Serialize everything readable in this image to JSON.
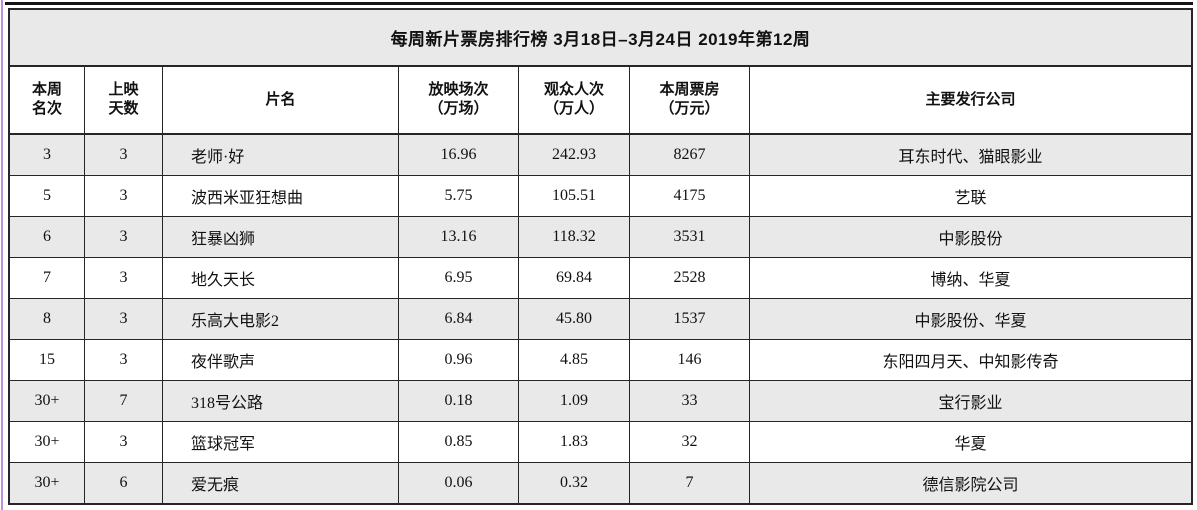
{
  "page": {
    "title": "每周新片票房排行榜  3月18日–3月24日  2019年第12周"
  },
  "chart_data": {
    "type": "table",
    "title": "每周新片票房排行榜 3月18日–3月24日 2019年第12周",
    "week": "2019年第12周",
    "date_range": "3月18日–3月24日",
    "columns": [
      {
        "key": "rank",
        "lines": [
          "本周",
          "名次"
        ]
      },
      {
        "key": "days",
        "lines": [
          "上映",
          "天数"
        ]
      },
      {
        "key": "film-title",
        "lines": [
          "片名"
        ]
      },
      {
        "key": "screenings",
        "lines": [
          "放映场次",
          "（万场）"
        ]
      },
      {
        "key": "admissions",
        "lines": [
          "观众人次",
          "（万人）"
        ]
      },
      {
        "key": "box-office",
        "lines": [
          "本周票房",
          "（万元）"
        ]
      },
      {
        "key": "distributor",
        "lines": [
          "主要发行公司"
        ]
      }
    ],
    "rows": [
      [
        "3",
        "3",
        "老师·好",
        "16.96",
        "242.93",
        "8267",
        "耳东时代、猫眼影业"
      ],
      [
        "5",
        "3",
        "波西米亚狂想曲",
        "5.75",
        "105.51",
        "4175",
        "艺联"
      ],
      [
        "6",
        "3",
        "狂暴凶狮",
        "13.16",
        "118.32",
        "3531",
        "中影股份"
      ],
      [
        "7",
        "3",
        "地久天长",
        "6.95",
        "69.84",
        "2528",
        "博纳、华夏"
      ],
      [
        "8",
        "3",
        "乐高大电影2",
        "6.84",
        "45.80",
        "1537",
        "中影股份、华夏"
      ],
      [
        "15",
        "3",
        "夜伴歌声",
        "0.96",
        "4.85",
        "146",
        "东阳四月天、中知影传奇"
      ],
      [
        "30+",
        "7",
        "318号公路",
        "0.18",
        "1.09",
        "33",
        "宝行影业"
      ],
      [
        "30+",
        "3",
        "篮球冠军",
        "0.85",
        "1.83",
        "32",
        "华夏"
      ],
      [
        "30+",
        "6",
        "爱无痕",
        "0.06",
        "0.32",
        "7",
        "德信影院公司"
      ]
    ]
  },
  "colors": {
    "row_shade": "#e9e9e9",
    "border": "#262626",
    "text": "#111111",
    "left_edge_accent": "#bd90dc"
  }
}
